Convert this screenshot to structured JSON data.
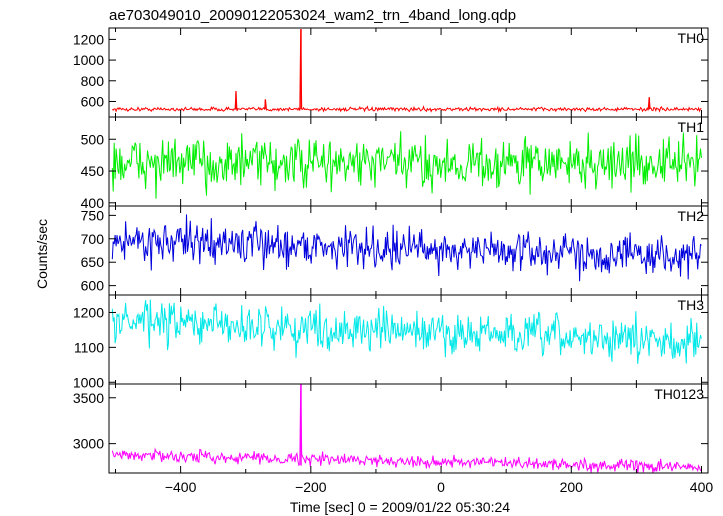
{
  "chart_data": {
    "type": "line",
    "title": "ae703049010_20090122053024_wam2_trn_4band_long.qdp",
    "xlabel": "Time [sec] 0 = 2009/01/22 05:30:24",
    "ylabel": "Counts/sec",
    "xlim": [
      -510,
      410
    ],
    "xticks": [
      -400,
      -200,
      0,
      200,
      400
    ],
    "grid": false,
    "panels": [
      {
        "name": "TH0",
        "color": "#ff0000",
        "ylim": [
          450,
          1310
        ],
        "yticks": [
          600,
          800,
          1000,
          1200
        ],
        "baseline": 525,
        "noise": 13,
        "trend": [
          0,
          0
        ],
        "spikes": [
          {
            "x": -215,
            "y": 1300
          },
          {
            "x": -315,
            "y": 700
          },
          {
            "x": -270,
            "y": 620
          },
          {
            "x": 320,
            "y": 640
          }
        ]
      },
      {
        "name": "TH1",
        "color": "#00ee00",
        "ylim": [
          395,
          535
        ],
        "yticks": [
          400,
          450,
          500
        ],
        "baseline": 462,
        "noise": 28,
        "trend": [
          0,
          0
        ],
        "spikes": []
      },
      {
        "name": "TH2",
        "color": "#0000dd",
        "ylim": [
          580,
          770
        ],
        "yticks": [
          600,
          650,
          700,
          750
        ],
        "baseline": 672,
        "noise": 30,
        "trend": [
          25,
          -10
        ],
        "spikes": []
      },
      {
        "name": "TH3",
        "color": "#00e8e8",
        "ylim": [
          995,
          1250
        ],
        "yticks": [
          1000,
          1100,
          1200
        ],
        "baseline": 1120,
        "noise": 42,
        "trend": [
          55,
          -5
        ],
        "spikes": []
      },
      {
        "name": "TH0123",
        "color": "#ff00ff",
        "ylim": [
          2680,
          3650
        ],
        "yticks": [
          3000,
          3500
        ],
        "baseline": 2760,
        "noise": 45,
        "trend": [
          120,
          -20
        ],
        "spikes": [
          {
            "x": -215,
            "y": 3650
          }
        ]
      }
    ]
  }
}
